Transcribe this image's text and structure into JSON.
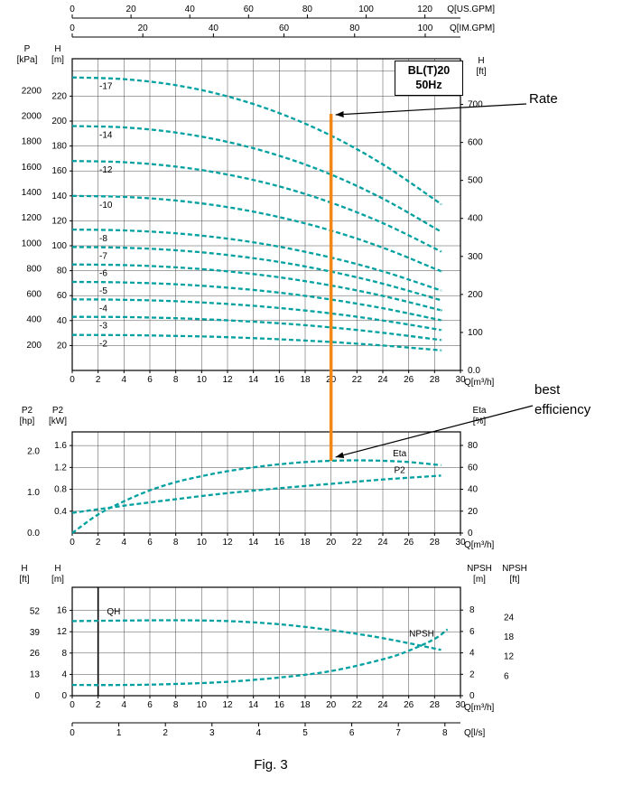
{
  "figure": {
    "caption": "Fig. 3",
    "model_box": {
      "line1": "BL(T)20",
      "line2": "50Hz"
    },
    "annotations": {
      "rate": "Rate",
      "best_efficiency": "best efficiency"
    }
  },
  "colors": {
    "curve": "#00A0A0",
    "rate_line": "#F28718",
    "grid": "#4a4a4a",
    "frame": "#000000",
    "marker_line": "#000000"
  },
  "chart_data": [
    {
      "id": "hq",
      "type": "line",
      "grid": true,
      "x_axes": [
        {
          "id": "usgpm",
          "label": "Q[US.GPM]",
          "ticks": [
            0,
            20,
            40,
            60,
            80,
            100,
            120
          ]
        },
        {
          "id": "imgpm",
          "label": "Q[IM.GPM]",
          "ticks": [
            0,
            20,
            40,
            60,
            80,
            100
          ]
        },
        {
          "id": "m3h",
          "label": "Q[m³/h]",
          "ticks": [
            0,
            2,
            4,
            6,
            8,
            10,
            12,
            14,
            16,
            18,
            20,
            22,
            24,
            26,
            28,
            30
          ]
        }
      ],
      "y_axes": [
        {
          "id": "kpa",
          "label": "P [kPa]",
          "ticks": [
            200,
            400,
            600,
            800,
            1000,
            1200,
            1400,
            1600,
            1800,
            2000,
            2200
          ]
        },
        {
          "id": "m",
          "label": "H [m]",
          "ticks": [
            20,
            40,
            60,
            80,
            100,
            120,
            140,
            160,
            180,
            200,
            220
          ]
        },
        {
          "id": "ft",
          "label": "H [ft]",
          "ticks": [
            "0.0",
            "100",
            "200",
            "300",
            "400",
            "500",
            "600",
            "700"
          ]
        }
      ],
      "rate_q": 20,
      "series": [
        {
          "label": "-17",
          "axis": "m",
          "points": [
            [
              0,
              235
            ],
            [
              4,
              233.6
            ],
            [
              8,
              228.8
            ],
            [
              12,
              219.8
            ],
            [
              16,
              206.4
            ],
            [
              20,
              188.3
            ],
            [
              24,
              165.3
            ],
            [
              28,
              137.1
            ],
            [
              28.5,
              133.2
            ]
          ]
        },
        {
          "label": "-14",
          "axis": "m",
          "points": [
            [
              0,
              196
            ],
            [
              4,
              194.9
            ],
            [
              8,
              190.8
            ],
            [
              12,
              183.3
            ],
            [
              16,
              172.2
            ],
            [
              20,
              157.1
            ],
            [
              24,
              137.8
            ],
            [
              28,
              114.3
            ],
            [
              28.5,
              111.1
            ]
          ]
        },
        {
          "label": "-12",
          "axis": "m",
          "points": [
            [
              0,
              168
            ],
            [
              4,
              167.0
            ],
            [
              8,
              163.5
            ],
            [
              12,
              157.1
            ],
            [
              16,
              147.6
            ],
            [
              20,
              134.6
            ],
            [
              24,
              118.2
            ],
            [
              28,
              98.0
            ],
            [
              28.5,
              95.2
            ]
          ]
        },
        {
          "label": "-10",
          "axis": "m",
          "points": [
            [
              0,
              140
            ],
            [
              4,
              139.2
            ],
            [
              8,
              136.3
            ],
            [
              12,
              131.0
            ],
            [
              16,
              123.0
            ],
            [
              20,
              112.2
            ],
            [
              24,
              98.5
            ],
            [
              28,
              81.7
            ],
            [
              28.5,
              79.4
            ]
          ]
        },
        {
          "label": "-8",
          "axis": "m",
          "points": [
            [
              0,
              113
            ],
            [
              4,
              112.3
            ],
            [
              8,
              110.0
            ],
            [
              12,
              105.7
            ],
            [
              16,
              99.3
            ],
            [
              20,
              90.5
            ],
            [
              24,
              79.5
            ],
            [
              28,
              65.9
            ],
            [
              28.5,
              64.1
            ]
          ]
        },
        {
          "label": "-7",
          "axis": "m",
          "points": [
            [
              0,
              99
            ],
            [
              4,
              98.4
            ],
            [
              8,
              96.4
            ],
            [
              12,
              92.6
            ],
            [
              16,
              87.0
            ],
            [
              20,
              79.3
            ],
            [
              24,
              69.6
            ],
            [
              28,
              57.8
            ],
            [
              28.5,
              56.1
            ]
          ]
        },
        {
          "label": "-6",
          "axis": "m",
          "points": [
            [
              0,
              85
            ],
            [
              4,
              84.5
            ],
            [
              8,
              82.7
            ],
            [
              12,
              79.5
            ],
            [
              16,
              74.7
            ],
            [
              20,
              68.1
            ],
            [
              24,
              59.8
            ],
            [
              28,
              49.6
            ],
            [
              28.5,
              48.2
            ]
          ]
        },
        {
          "label": "-5",
          "axis": "m",
          "points": [
            [
              0,
              71
            ],
            [
              4,
              70.6
            ],
            [
              8,
              69.1
            ],
            [
              12,
              66.4
            ],
            [
              16,
              62.4
            ],
            [
              20,
              56.9
            ],
            [
              24,
              49.9
            ],
            [
              28,
              41.4
            ],
            [
              28.5,
              40.3
            ]
          ]
        },
        {
          "label": "-4",
          "axis": "m",
          "points": [
            [
              0,
              57
            ],
            [
              4,
              56.7
            ],
            [
              8,
              55.5
            ],
            [
              12,
              53.3
            ],
            [
              16,
              50.1
            ],
            [
              20,
              45.7
            ],
            [
              24,
              40.1
            ],
            [
              28,
              33.3
            ],
            [
              28.5,
              32.3
            ]
          ]
        },
        {
          "label": "-3",
          "axis": "m",
          "points": [
            [
              0,
              43
            ],
            [
              4,
              42.8
            ],
            [
              8,
              41.9
            ],
            [
              12,
              40.2
            ],
            [
              16,
              37.8
            ],
            [
              20,
              34.5
            ],
            [
              24,
              30.2
            ],
            [
              28,
              25.1
            ],
            [
              28.5,
              24.4
            ]
          ]
        },
        {
          "label": "-2",
          "axis": "m",
          "points": [
            [
              0,
              28.5
            ],
            [
              4,
              28.3
            ],
            [
              8,
              27.7
            ],
            [
              12,
              26.7
            ],
            [
              16,
              25.0
            ],
            [
              20,
              22.8
            ],
            [
              24,
              20.0
            ],
            [
              28,
              16.6
            ],
            [
              28.5,
              16.2
            ]
          ]
        }
      ]
    },
    {
      "id": "power_eta",
      "type": "line",
      "grid": true,
      "x_axes": [
        {
          "id": "m3h",
          "label": "Q[m³/h]",
          "ticks": [
            0,
            2,
            4,
            6,
            8,
            10,
            12,
            14,
            16,
            18,
            20,
            22,
            24,
            26,
            28,
            30
          ]
        }
      ],
      "y_axes": [
        {
          "id": "hp",
          "label": "P2 [hp]",
          "ticks": [
            "0.0",
            "1.0",
            "2.0"
          ]
        },
        {
          "id": "kw",
          "label": "P2 [kW]",
          "ticks": [
            "0.4",
            "0.8",
            "1.2",
            "1.6"
          ]
        },
        {
          "id": "eta",
          "label": "Eta [%]",
          "ticks": [
            0,
            20,
            40,
            60,
            80
          ]
        }
      ],
      "series": [
        {
          "label": "Eta",
          "axis": "eta",
          "points": [
            [
              0,
              0
            ],
            [
              2,
              17
            ],
            [
              4,
              29
            ],
            [
              6,
              39
            ],
            [
              8,
              46.5
            ],
            [
              10,
              52
            ],
            [
              12,
              56.5
            ],
            [
              14,
              60
            ],
            [
              16,
              62.8
            ],
            [
              18,
              64.8
            ],
            [
              20,
              66
            ],
            [
              22,
              66.4
            ],
            [
              24,
              66
            ],
            [
              26,
              64.8
            ],
            [
              28.5,
              62
            ]
          ]
        },
        {
          "label": "P2",
          "axis": "kw",
          "points": [
            [
              0,
              0.37
            ],
            [
              4,
              0.5
            ],
            [
              8,
              0.62
            ],
            [
              12,
              0.73
            ],
            [
              16,
              0.82
            ],
            [
              20,
              0.9
            ],
            [
              24,
              0.98
            ],
            [
              28.5,
              1.05
            ]
          ]
        }
      ],
      "best_efficiency_q": 20
    },
    {
      "id": "qh_npsh",
      "type": "line",
      "grid": true,
      "marker_line_q": 2,
      "x_axes": [
        {
          "id": "m3h",
          "label": "Q[m³/h]",
          "ticks": [
            0,
            2,
            4,
            6,
            8,
            10,
            12,
            14,
            16,
            18,
            20,
            22,
            24,
            26,
            28,
            30
          ]
        },
        {
          "id": "ls",
          "label": "Q[l/s]",
          "ticks": [
            0,
            1,
            2,
            3,
            4,
            5,
            6,
            7,
            8
          ]
        }
      ],
      "y_axes": [
        {
          "id": "ft",
          "label": "H [ft]",
          "ticks": [
            0,
            13,
            26,
            39,
            52
          ]
        },
        {
          "id": "m",
          "label": "H [m]",
          "ticks": [
            0,
            4,
            8,
            12,
            16
          ]
        },
        {
          "id": "npshm",
          "label": "NPSH [m]",
          "ticks": [
            0,
            2,
            4,
            6,
            8
          ]
        },
        {
          "id": "npshft",
          "label": "NPSH [ft]",
          "ticks": [
            6,
            12,
            18,
            24
          ]
        }
      ],
      "series": [
        {
          "label": "QH",
          "axis": "m",
          "points": [
            [
              0,
              14.0
            ],
            [
              4,
              14.1
            ],
            [
              8,
              14.15
            ],
            [
              12,
              14.0
            ],
            [
              16,
              13.4
            ],
            [
              20,
              12.3
            ],
            [
              24,
              10.8
            ],
            [
              28.5,
              8.6
            ]
          ]
        },
        {
          "label": "NPSH",
          "axis": "npshm",
          "points": [
            [
              0,
              1.0
            ],
            [
              4,
              1.0
            ],
            [
              8,
              1.1
            ],
            [
              12,
              1.3
            ],
            [
              16,
              1.7
            ],
            [
              20,
              2.3
            ],
            [
              24,
              3.4
            ],
            [
              26,
              4.2
            ],
            [
              28,
              5.3
            ],
            [
              29,
              6.2
            ]
          ]
        }
      ]
    }
  ]
}
